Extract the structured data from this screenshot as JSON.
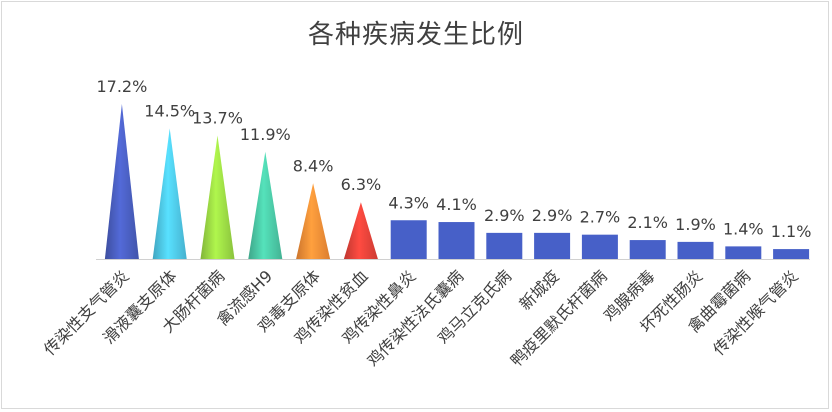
{
  "chart_data": {
    "type": "bar",
    "title": "各种疾病发生比例",
    "xlabel": "",
    "ylabel": "",
    "ylim": [
      0,
      18
    ],
    "grid": false,
    "legend": "none",
    "categories": [
      "传染性支气管炎",
      "滑液囊支原体",
      "大肠杆菌病",
      "禽流感H9",
      "鸡毒支原体",
      "鸡传染性贫血",
      "鸡传染性鼻炎",
      "鸡传染性法氏囊病",
      "鸡马立克氏病",
      "新城疫",
      "鸭疫里默氏杆菌病",
      "鸡腺病毒",
      "坏死性肠炎",
      "禽曲霉菌病",
      "传染性喉气管炎"
    ],
    "values": [
      17.2,
      14.5,
      13.7,
      11.9,
      8.4,
      6.3,
      4.3,
      4.1,
      2.9,
      2.9,
      2.7,
      2.1,
      1.9,
      1.4,
      1.1
    ],
    "value_labels": [
      "17.2%",
      "14.5%",
      "13.7%",
      "11.9%",
      "8.4%",
      "6.3%",
      "4.3%",
      "4.1%",
      "2.9%",
      "2.9%",
      "2.7%",
      "2.1%",
      "1.9%",
      "1.4%",
      "1.1%"
    ],
    "shapes": [
      "cone",
      "cone",
      "cone",
      "cone",
      "cone",
      "cone",
      "bar",
      "bar",
      "bar",
      "bar",
      "bar",
      "bar",
      "bar",
      "bar",
      "bar"
    ],
    "colors": [
      "#4a5fc1",
      "#4fc9ea",
      "#9ddc45",
      "#4ccaa7",
      "#f98f37",
      "#e8433a",
      "#4760c8",
      "#4760c8",
      "#4760c8",
      "#4760c8",
      "#4760c8",
      "#4760c8",
      "#4760c8",
      "#4760c8",
      "#4760c8"
    ]
  }
}
